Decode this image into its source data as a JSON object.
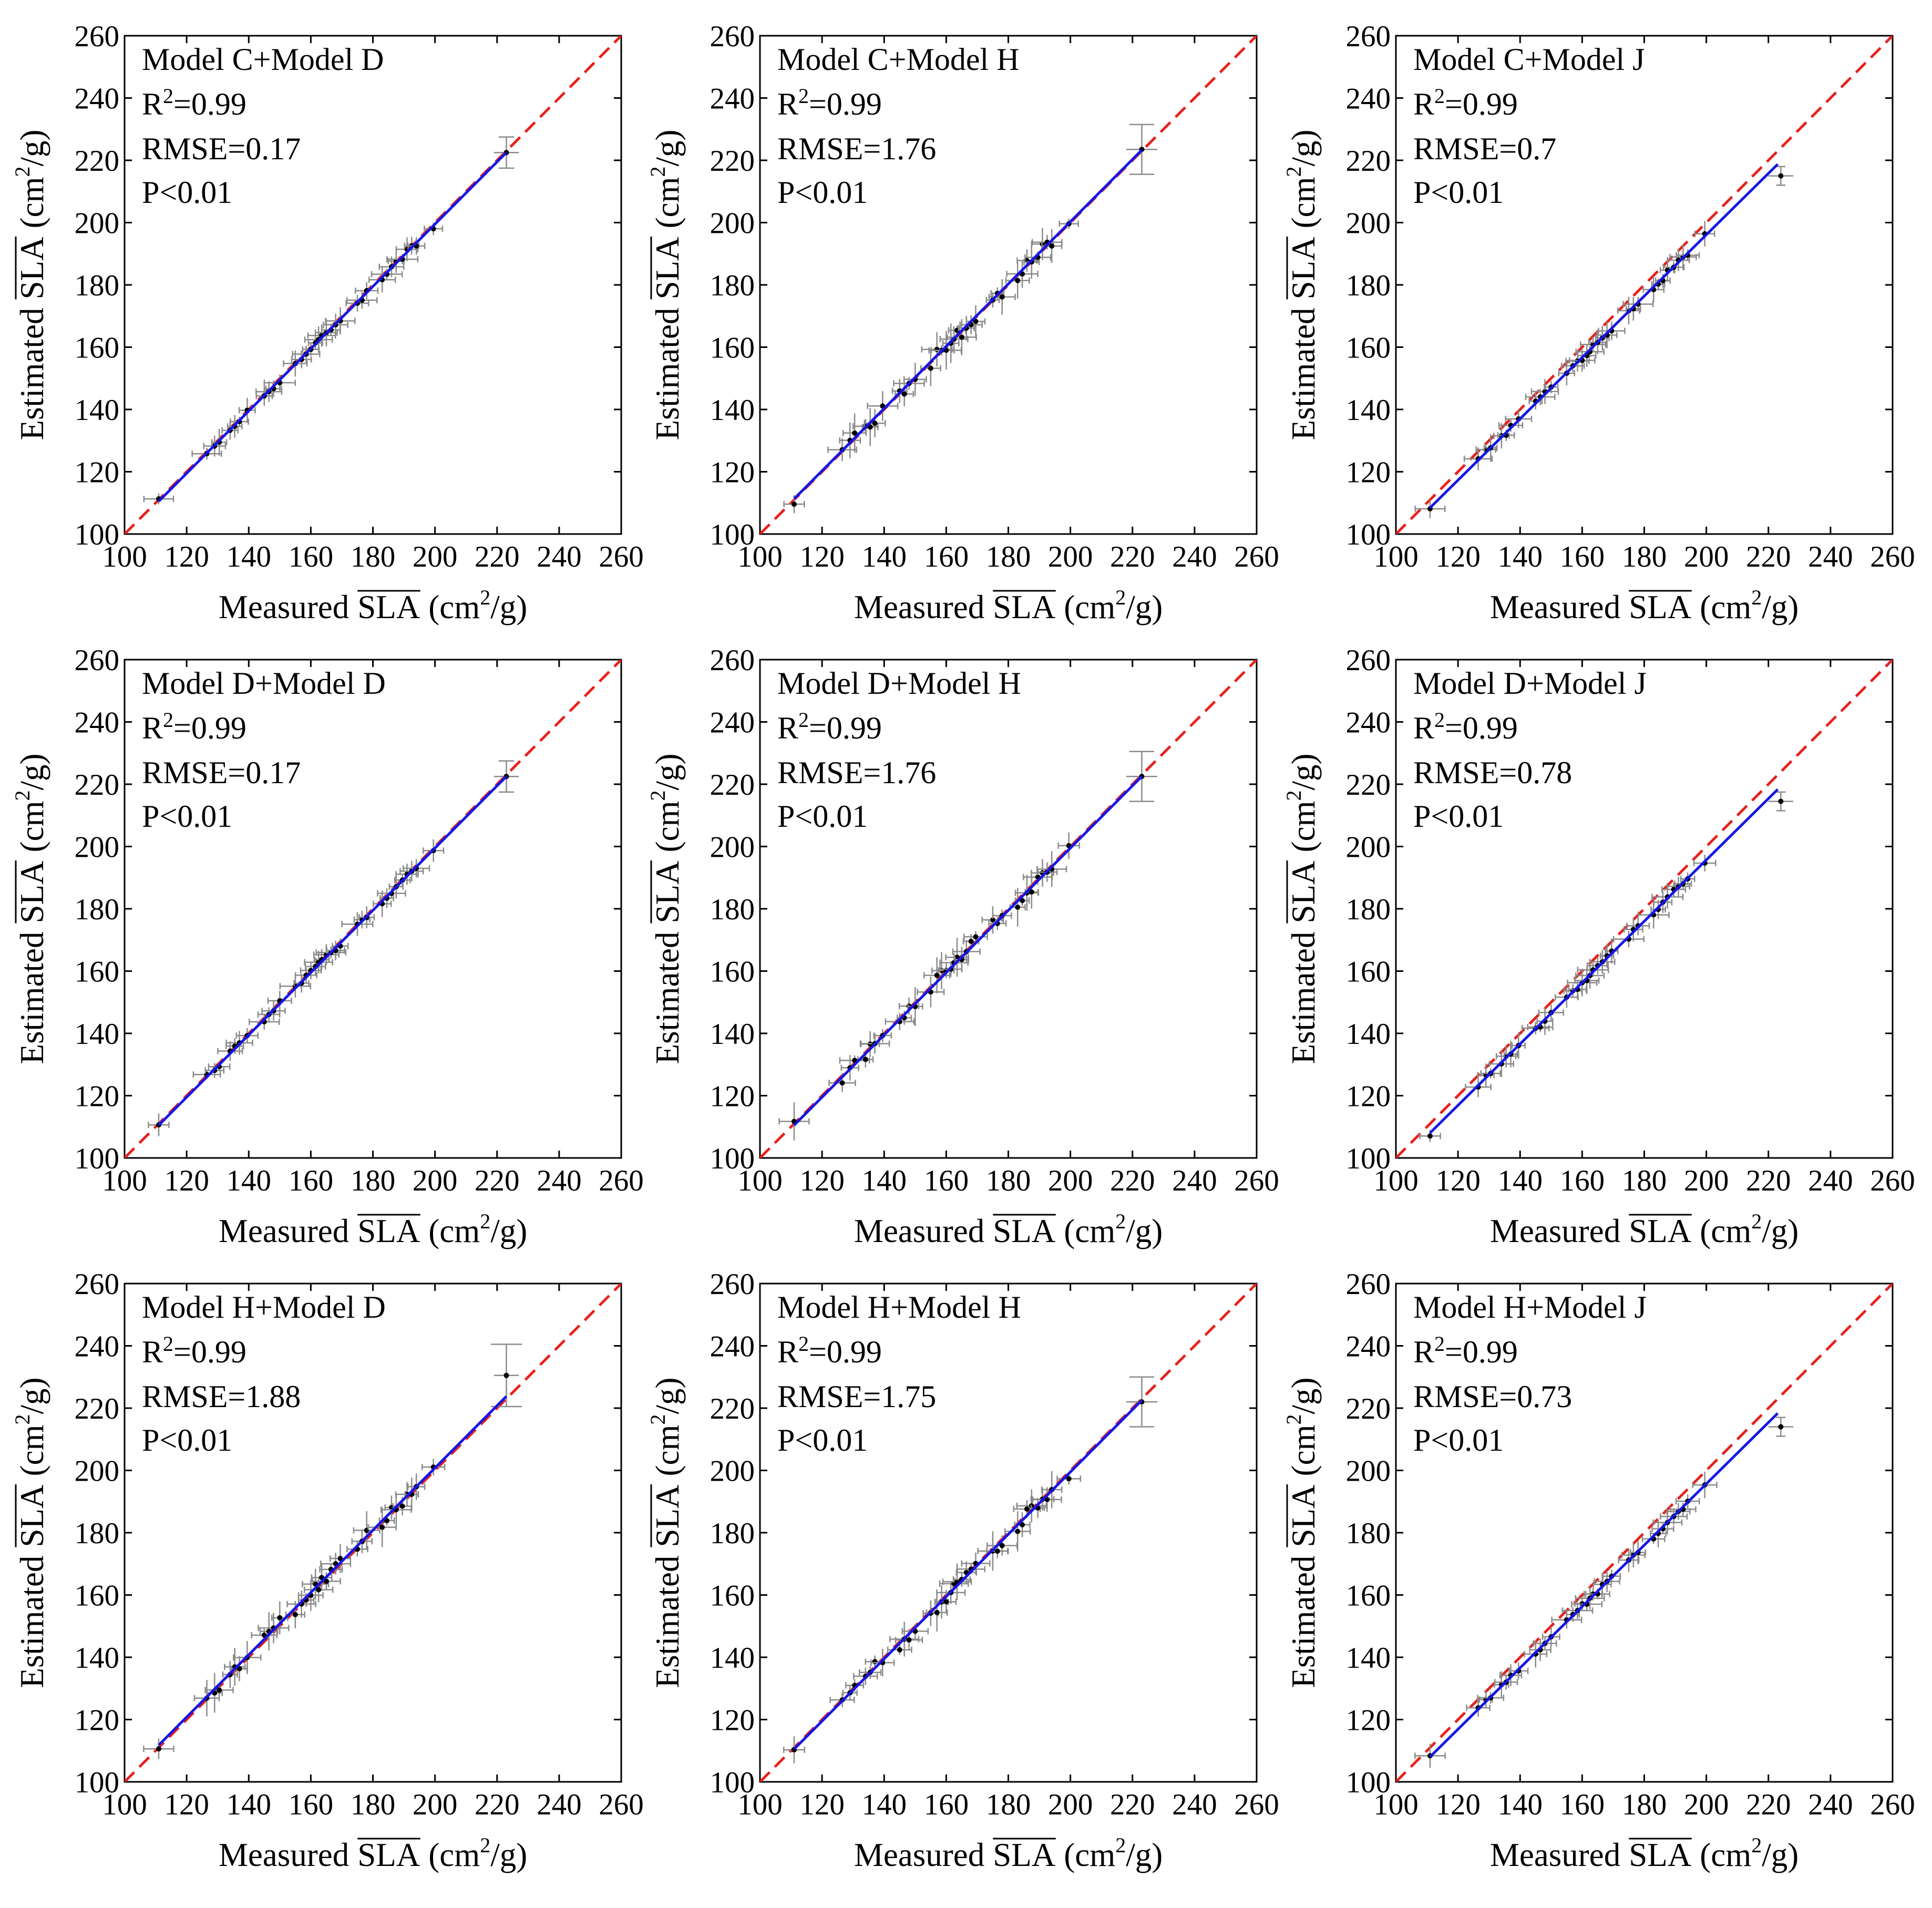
{
  "figure": {
    "xlabel_prefix": "Measured",
    "ylabel_prefix": "Estimated",
    "var_name": "SLA",
    "unit_open": "(cm",
    "unit_sup": "2",
    "unit_close": "/g)",
    "r2_prefix": "R",
    "r2_sup": "2",
    "colors": {
      "identity_line": "#e8211d",
      "fit_line": "#1515e6",
      "error_bars": "#8a8a8a",
      "points": "#000000"
    }
  },
  "chart_data": [
    {
      "type": "scatter",
      "title": "Model C+Model D",
      "r2": "=0.99",
      "rmse": "RMSE=0.17",
      "p": "P<0.01",
      "fit": {
        "slope": 1.0,
        "intercept": -0.5
      },
      "xlim": [
        100,
        260
      ],
      "ylim": [
        100,
        260
      ],
      "ticks": [
        100,
        120,
        140,
        160,
        180,
        200,
        220,
        240,
        260
      ],
      "outlier": {
        "x": 223,
        "y": 222.5,
        "xerr": 4,
        "yerr": 5
      }
    },
    {
      "type": "scatter",
      "title": "Model C+Model H",
      "r2": "=0.99",
      "rmse": "RMSE=1.76",
      "p": "P<0.01",
      "fit": {
        "slope": 1.0,
        "intercept": 0.3
      },
      "xlim": [
        100,
        260
      ],
      "ylim": [
        100,
        260
      ],
      "ticks": [
        100,
        120,
        140,
        160,
        180,
        200,
        220,
        240,
        260
      ],
      "outlier": {
        "x": 223,
        "y": 223.5,
        "xerr": 5,
        "yerr": 8
      }
    },
    {
      "type": "scatter",
      "title": "Model C+Model J",
      "r2": "=0.99",
      "rmse": "RMSE=0.7",
      "p": "P<0.01",
      "fit": {
        "slope": 0.985,
        "intercept": -0.9
      },
      "xlim": [
        100,
        260
      ],
      "ylim": [
        100,
        260
      ],
      "ticks": [
        100,
        120,
        140,
        160,
        180,
        200,
        220,
        240,
        260
      ],
      "outlier": {
        "x": 224,
        "y": 215,
        "xerr": 4,
        "yerr": 3
      }
    },
    {
      "type": "scatter",
      "title": "Model D+Model D",
      "r2": "=0.99",
      "rmse": "RMSE=0.17",
      "p": "P<0.01",
      "fit": {
        "slope": 1.0,
        "intercept": -0.5
      },
      "xlim": [
        100,
        260
      ],
      "ylim": [
        100,
        260
      ],
      "ticks": [
        100,
        120,
        140,
        160,
        180,
        200,
        220,
        240,
        260
      ],
      "outlier": {
        "x": 223,
        "y": 222.5,
        "xerr": 4,
        "yerr": 5
      }
    },
    {
      "type": "scatter",
      "title": "Model D+Model H",
      "r2": "=0.99",
      "rmse": "RMSE=1.76",
      "p": "P<0.01",
      "fit": {
        "slope": 1.0,
        "intercept": -0.5
      },
      "xlim": [
        100,
        260
      ],
      "ylim": [
        100,
        260
      ],
      "ticks": [
        100,
        120,
        140,
        160,
        180,
        200,
        220,
        240,
        260
      ],
      "outlier": {
        "x": 223,
        "y": 222.5,
        "xerr": 5,
        "yerr": 8
      }
    },
    {
      "type": "scatter",
      "title": "Model D+Model J",
      "r2": "=0.99",
      "rmse": "RMSE=0.78",
      "p": "P<0.01",
      "fit": {
        "slope": 0.985,
        "intercept": -1.3
      },
      "xlim": [
        100,
        260
      ],
      "ylim": [
        100,
        260
      ],
      "ticks": [
        100,
        120,
        140,
        160,
        180,
        200,
        220,
        240,
        260
      ],
      "outlier": {
        "x": 224,
        "y": 214.5,
        "xerr": 4,
        "yerr": 3
      }
    },
    {
      "type": "scatter",
      "title": "Model H+Model D",
      "r2": "=0.99",
      "rmse": "RMSE=1.88",
      "p": "P<0.01",
      "fit": {
        "slope": 1.0,
        "intercept": 0.8
      },
      "xlim": [
        100,
        260
      ],
      "ylim": [
        100,
        260
      ],
      "ticks": [
        100,
        120,
        140,
        160,
        180,
        200,
        220,
        240,
        260
      ],
      "outlier": {
        "x": 223,
        "y": 230.5,
        "xerr": 4,
        "yerr": 10
      }
    },
    {
      "type": "scatter",
      "title": "Model H+Model H",
      "r2": "=0.99",
      "rmse": "RMSE=1.75",
      "p": "P<0.01",
      "fit": {
        "slope": 1.0,
        "intercept": -0.5
      },
      "xlim": [
        100,
        260
      ],
      "ylim": [
        100,
        260
      ],
      "ticks": [
        100,
        120,
        140,
        160,
        180,
        200,
        220,
        240,
        260
      ],
      "outlier": {
        "x": 223,
        "y": 222,
        "xerr": 5,
        "yerr": 8
      }
    },
    {
      "type": "scatter",
      "title": "Model H+Model J",
      "r2": "=0.99",
      "rmse": "RMSE=0.73",
      "p": "P<0.01",
      "fit": {
        "slope": 0.985,
        "intercept": -1.3
      },
      "xlim": [
        100,
        260
      ],
      "ylim": [
        100,
        260
      ],
      "ticks": [
        100,
        120,
        140,
        160,
        180,
        200,
        220,
        240,
        260
      ],
      "outlier": {
        "x": 224,
        "y": 214,
        "xerr": 4,
        "yerr": 3
      }
    }
  ],
  "measured_values": [
    111,
    126.5,
    129,
    130.5,
    134,
    135.5,
    137,
    139.5,
    145,
    146.5,
    148,
    150,
    155,
    157,
    158.5,
    160,
    161.5,
    162.5,
    163.5,
    165,
    166.5,
    168,
    169.5,
    175,
    176.5,
    178,
    183,
    184.5,
    186,
    187.5,
    189.5,
    191,
    192.5,
    194,
    199.5
  ]
}
